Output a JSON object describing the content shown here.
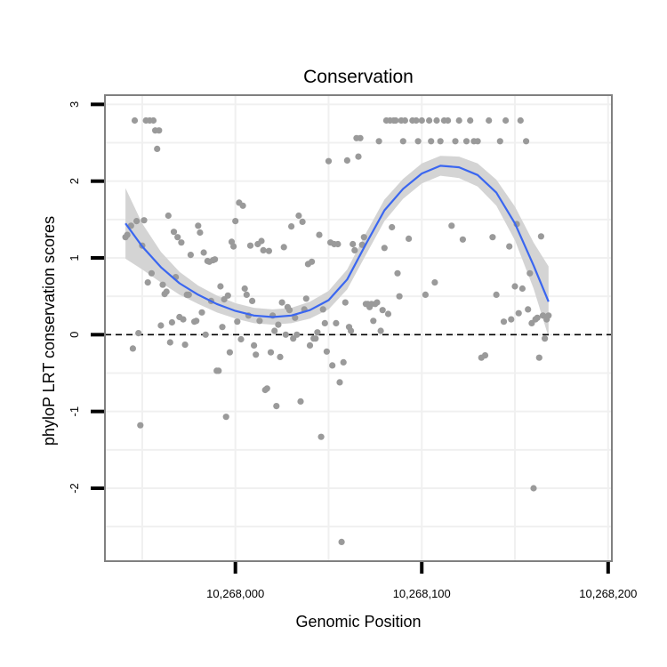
{
  "chart_data": {
    "type": "scatter",
    "title": "Conservation",
    "xlabel": "Genomic Position",
    "ylabel": "phyloP LRT conservation scores",
    "xlim": [
      10267930,
      10268202
    ],
    "ylim": [
      -2.95,
      3.12
    ],
    "x_ticks": [
      10268000,
      10268100,
      10268200
    ],
    "x_tick_labels": [
      "10,268,000",
      "10,268,100",
      "10,268,200"
    ],
    "y_ticks": [
      -2,
      -1,
      0,
      1,
      2,
      3
    ],
    "y_tick_labels": [
      "-2",
      "-1",
      "0",
      "1",
      "2",
      "3"
    ],
    "grid": true,
    "reference_line": {
      "y": 0,
      "style": "dashed"
    },
    "colors": {
      "points": "#9a9a9a",
      "smooth_line": "#3a66f0",
      "confidence_band": "#d4d4d4",
      "panel_border": "#808080",
      "grid": "#f0f0f0"
    },
    "series": [
      {
        "type": "scatter",
        "points": [
          [
            10267941,
            1.27
          ],
          [
            10267942,
            1.3
          ],
          [
            10267944,
            1.42
          ],
          [
            10267945,
            -0.18
          ],
          [
            10267946,
            2.79
          ],
          [
            10267947,
            1.48
          ],
          [
            10267948,
            0.02
          ],
          [
            10267949,
            -1.18
          ],
          [
            10267950,
            1.16
          ],
          [
            10267951,
            1.49
          ],
          [
            10267952,
            2.79
          ],
          [
            10267953,
            0.68
          ],
          [
            10267954,
            2.79
          ],
          [
            10267955,
            0.8
          ],
          [
            10267956,
            2.79
          ],
          [
            10267957,
            2.66
          ],
          [
            10267958,
            2.42
          ],
          [
            10267959,
            2.66
          ],
          [
            10267960,
            0.12
          ],
          [
            10267961,
            0.65
          ],
          [
            10267962,
            0.53
          ],
          [
            10267963,
            0.56
          ],
          [
            10267964,
            1.55
          ],
          [
            10267965,
            -0.1
          ],
          [
            10267966,
            0.16
          ],
          [
            10267967,
            1.34
          ],
          [
            10267968,
            0.75
          ],
          [
            10267969,
            1.27
          ],
          [
            10267970,
            0.23
          ],
          [
            10267971,
            1.2
          ],
          [
            10267972,
            0.2
          ],
          [
            10267973,
            -0.13
          ],
          [
            10267974,
            0.52
          ],
          [
            10267975,
            0.52
          ],
          [
            10267976,
            1.04
          ],
          [
            10267978,
            0.17
          ],
          [
            10267979,
            0.18
          ],
          [
            10267980,
            1.42
          ],
          [
            10267981,
            1.33
          ],
          [
            10267982,
            0.29
          ],
          [
            10267983,
            1.07
          ],
          [
            10267984,
            0.0
          ],
          [
            10267985,
            0.96
          ],
          [
            10267986,
            0.95
          ],
          [
            10267987,
            0.44
          ],
          [
            10267988,
            0.97
          ],
          [
            10267989,
            0.98
          ],
          [
            10267990,
            -0.47
          ],
          [
            10267991,
            -0.47
          ],
          [
            10267992,
            0.63
          ],
          [
            10267993,
            0.1
          ],
          [
            10267994,
            0.46
          ],
          [
            10267995,
            -1.07
          ],
          [
            10267996,
            0.51
          ],
          [
            10267997,
            -0.23
          ],
          [
            10267998,
            1.21
          ],
          [
            10267999,
            1.15
          ],
          [
            10268000,
            1.48
          ],
          [
            10268001,
            0.17
          ],
          [
            10268002,
            1.72
          ],
          [
            10268003,
            -0.06
          ],
          [
            10268004,
            1.68
          ],
          [
            10268005,
            0.6
          ],
          [
            10268006,
            0.52
          ],
          [
            10268007,
            0.25
          ],
          [
            10268008,
            1.16
          ],
          [
            10268009,
            0.44
          ],
          [
            10268010,
            -0.14
          ],
          [
            10268011,
            -0.26
          ],
          [
            10268012,
            1.18
          ],
          [
            10268013,
            0.18
          ],
          [
            10268014,
            1.22
          ],
          [
            10268015,
            1.1
          ],
          [
            10268016,
            -0.72
          ],
          [
            10268017,
            -0.7
          ],
          [
            10268018,
            1.09
          ],
          [
            10268019,
            -0.23
          ],
          [
            10268020,
            0.25
          ],
          [
            10268021,
            0.05
          ],
          [
            10268022,
            -0.93
          ],
          [
            10268023,
            0.13
          ],
          [
            10268024,
            -0.29
          ],
          [
            10268025,
            0.42
          ],
          [
            10268026,
            1.14
          ],
          [
            10268027,
            0.0
          ],
          [
            10268028,
            0.36
          ],
          [
            10268029,
            0.32
          ],
          [
            10268030,
            1.41
          ],
          [
            10268031,
            -0.05
          ],
          [
            10268032,
            0.22
          ],
          [
            10268033,
            0.0
          ],
          [
            10268034,
            1.55
          ],
          [
            10268035,
            -0.87
          ],
          [
            10268036,
            1.47
          ],
          [
            10268037,
            0.33
          ],
          [
            10268038,
            0.47
          ],
          [
            10268039,
            0.92
          ],
          [
            10268040,
            -0.14
          ],
          [
            10268041,
            0.95
          ],
          [
            10268042,
            -0.05
          ],
          [
            10268043,
            -0.05
          ],
          [
            10268044,
            0.03
          ],
          [
            10268045,
            1.3
          ],
          [
            10268046,
            -1.33
          ],
          [
            10268047,
            0.33
          ],
          [
            10268048,
            0.15
          ],
          [
            10268049,
            -0.22
          ],
          [
            10268050,
            2.26
          ],
          [
            10268051,
            1.2
          ],
          [
            10268052,
            -0.4
          ],
          [
            10268053,
            1.18
          ],
          [
            10268054,
            0.15
          ],
          [
            10268055,
            1.18
          ],
          [
            10268056,
            -0.62
          ],
          [
            10268057,
            -2.7
          ],
          [
            10268058,
            -0.36
          ],
          [
            10268059,
            0.42
          ],
          [
            10268060,
            2.27
          ],
          [
            10268061,
            0.1
          ],
          [
            10268062,
            0.05
          ],
          [
            10268063,
            1.18
          ],
          [
            10268064,
            1.1
          ],
          [
            10268065,
            2.56
          ],
          [
            10268066,
            2.32
          ],
          [
            10268067,
            2.56
          ],
          [
            10268068,
            1.17
          ],
          [
            10268069,
            1.27
          ],
          [
            10268070,
            0.4
          ],
          [
            10268071,
            0.4
          ],
          [
            10268072,
            0.36
          ],
          [
            10268073,
            0.4
          ],
          [
            10268074,
            0.18
          ],
          [
            10268075,
            0.4
          ],
          [
            10268076,
            0.42
          ],
          [
            10268077,
            2.52
          ],
          [
            10268078,
            0.05
          ],
          [
            10268079,
            0.32
          ],
          [
            10268080,
            1.13
          ],
          [
            10268081,
            2.79
          ],
          [
            10268082,
            0.27
          ],
          [
            10268083,
            2.79
          ],
          [
            10268084,
            1.4
          ],
          [
            10268085,
            2.79
          ],
          [
            10268086,
            2.79
          ],
          [
            10268087,
            0.8
          ],
          [
            10268088,
            0.5
          ],
          [
            10268089,
            2.79
          ],
          [
            10268090,
            2.52
          ],
          [
            10268091,
            2.79
          ],
          [
            10268093,
            1.25
          ],
          [
            10268095,
            2.79
          ],
          [
            10268097,
            2.79
          ],
          [
            10268098,
            2.52
          ],
          [
            10268100,
            2.79
          ],
          [
            10268102,
            0.52
          ],
          [
            10268104,
            2.79
          ],
          [
            10268105,
            2.52
          ],
          [
            10268107,
            0.68
          ],
          [
            10268108,
            2.79
          ],
          [
            10268110,
            2.52
          ],
          [
            10268112,
            2.79
          ],
          [
            10268114,
            2.79
          ],
          [
            10268116,
            1.42
          ],
          [
            10268118,
            2.52
          ],
          [
            10268120,
            2.79
          ],
          [
            10268122,
            1.24
          ],
          [
            10268124,
            2.52
          ],
          [
            10268126,
            2.79
          ],
          [
            10268128,
            2.52
          ],
          [
            10268130,
            2.52
          ],
          [
            10268132,
            -0.3
          ],
          [
            10268134,
            -0.27
          ],
          [
            10268136,
            2.79
          ],
          [
            10268138,
            1.27
          ],
          [
            10268140,
            0.52
          ],
          [
            10268142,
            2.52
          ],
          [
            10268144,
            0.17
          ],
          [
            10268145,
            2.79
          ],
          [
            10268147,
            1.15
          ],
          [
            10268148,
            0.2
          ],
          [
            10268150,
            0.63
          ],
          [
            10268151,
            1.44
          ],
          [
            10268152,
            0.28
          ],
          [
            10268153,
            2.79
          ],
          [
            10268154,
            0.6
          ],
          [
            10268156,
            2.52
          ],
          [
            10268157,
            0.33
          ],
          [
            10268158,
            0.8
          ],
          [
            10268159,
            0.15
          ],
          [
            10268160,
            -2.0
          ],
          [
            10268161,
            0.2
          ],
          [
            10268162,
            0.22
          ],
          [
            10268163,
            -0.3
          ],
          [
            10268164,
            1.28
          ],
          [
            10268165,
            0.25
          ],
          [
            10268166,
            -0.05
          ],
          [
            10268167,
            0.2
          ],
          [
            10268168,
            0.25
          ]
        ]
      },
      {
        "type": "smooth_line",
        "points": [
          [
            10267941,
            1.45
          ],
          [
            10267950,
            1.15
          ],
          [
            10267960,
            0.88
          ],
          [
            10267970,
            0.67
          ],
          [
            10267980,
            0.52
          ],
          [
            10267990,
            0.4
          ],
          [
            10268000,
            0.31
          ],
          [
            10268010,
            0.25
          ],
          [
            10268020,
            0.23
          ],
          [
            10268030,
            0.25
          ],
          [
            10268040,
            0.32
          ],
          [
            10268050,
            0.45
          ],
          [
            10268060,
            0.72
          ],
          [
            10268070,
            1.18
          ],
          [
            10268080,
            1.62
          ],
          [
            10268090,
            1.9
          ],
          [
            10268100,
            2.1
          ],
          [
            10268110,
            2.2
          ],
          [
            10268120,
            2.18
          ],
          [
            10268130,
            2.08
          ],
          [
            10268140,
            1.85
          ],
          [
            10268150,
            1.45
          ],
          [
            10268160,
            0.9
          ],
          [
            10268168,
            0.43
          ]
        ],
        "band_halfwidth": [
          0.46,
          0.3,
          0.2,
          0.15,
          0.12,
          0.11,
          0.1,
          0.1,
          0.1,
          0.1,
          0.11,
          0.12,
          0.13,
          0.14,
          0.14,
          0.13,
          0.13,
          0.13,
          0.14,
          0.15,
          0.17,
          0.22,
          0.3,
          0.46
        ]
      }
    ]
  }
}
